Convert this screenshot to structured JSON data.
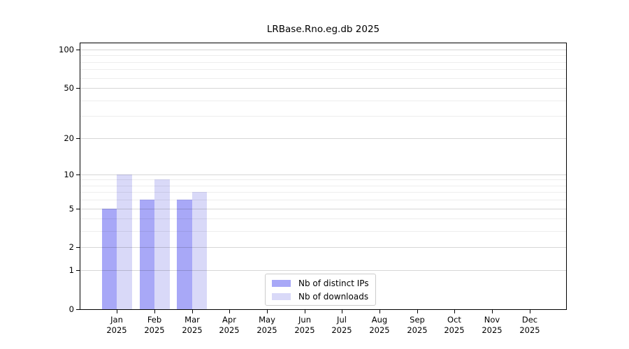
{
  "chart_data": {
    "type": "bar",
    "title": "LRBase.Rno.eg.db 2025",
    "year_label": "2025",
    "categories": [
      "Jan",
      "Feb",
      "Mar",
      "Apr",
      "May",
      "Jun",
      "Jul",
      "Aug",
      "Sep",
      "Oct",
      "Nov",
      "Dec"
    ],
    "series": [
      {
        "name": "Nb of distinct IPs",
        "color": "#a8a8f7",
        "values": [
          5,
          6,
          6,
          0,
          0,
          0,
          0,
          0,
          0,
          0,
          0,
          0
        ]
      },
      {
        "name": "Nb of downloads",
        "color": "#d9d9f8",
        "values": [
          10,
          9,
          7,
          0,
          0,
          0,
          0,
          0,
          0,
          0,
          0,
          0
        ]
      }
    ],
    "y_scale": "log10(1+v)",
    "y_tick_values": [
      0,
      1,
      2,
      5,
      10,
      20,
      50,
      100
    ],
    "y_tick_labels": [
      "0",
      "1",
      "2",
      "5",
      "10",
      "20",
      "50",
      "100"
    ],
    "y_minor_gridline_values": [
      3,
      4,
      6,
      7,
      8,
      9,
      30,
      40,
      60,
      70,
      80,
      90
    ],
    "ylim": [
      0,
      112
    ],
    "grid": true,
    "legend_position": "lower center",
    "colors": {
      "grid_major": "rgba(0,0,0,0.16)",
      "grid_minor": "rgba(0,0,0,0.07)",
      "spine": "#000000",
      "background": "#ffffff"
    }
  }
}
